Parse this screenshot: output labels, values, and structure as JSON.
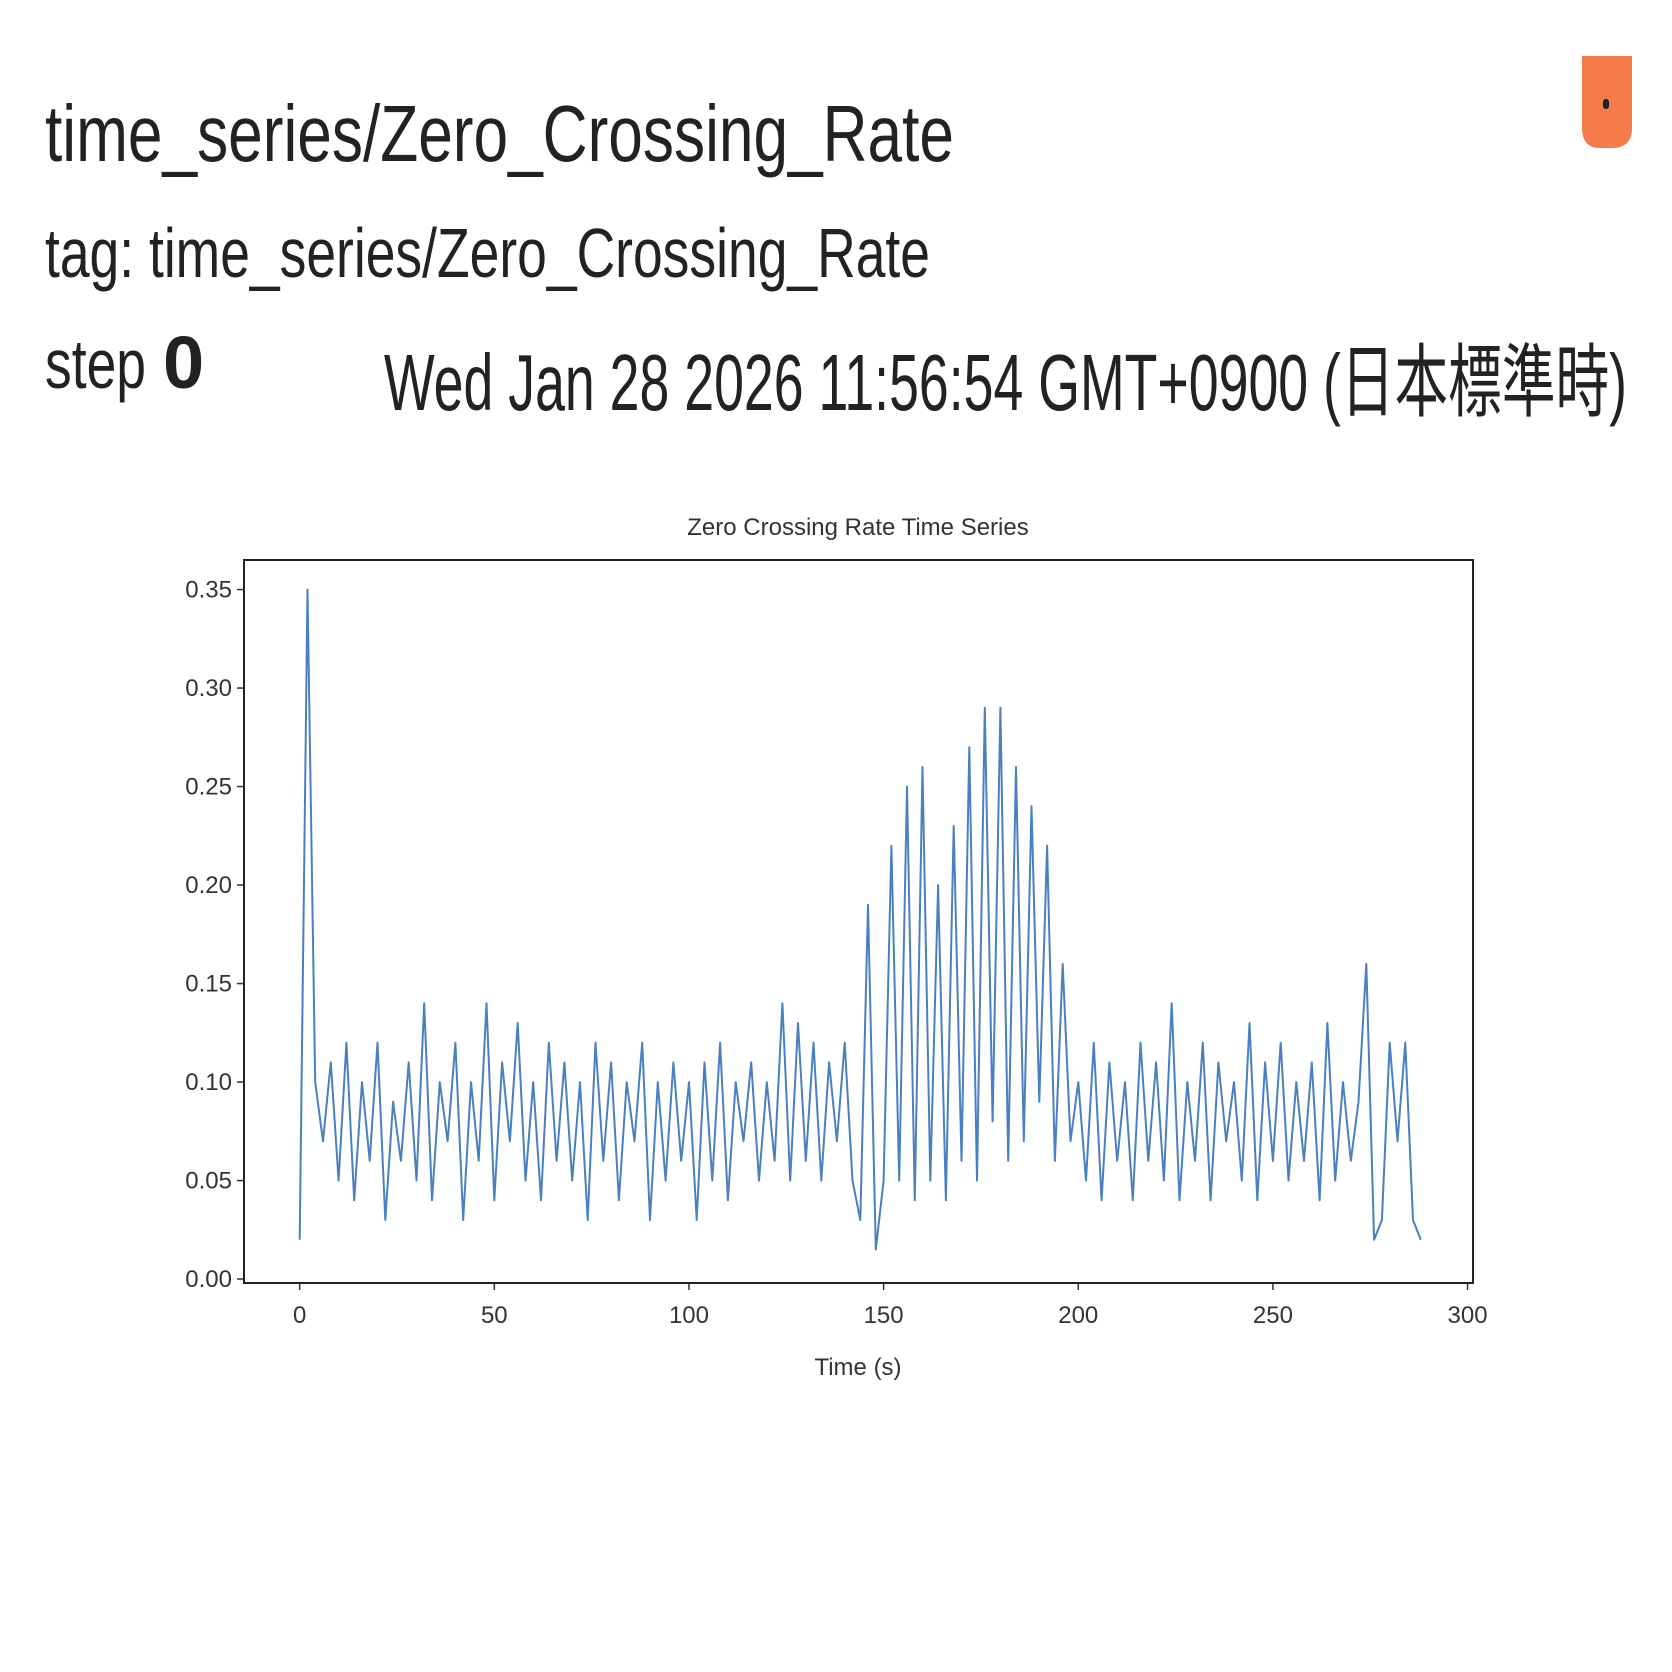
{
  "header": {
    "title": "time_series/Zero_Crossing_Rate",
    "tag": "tag: time_series/Zero_Crossing_Rate",
    "step_label": "step",
    "step": 0,
    "date": "Wed Jan 28 2026 11:56:54 GMT+0900 (日本標準時)"
  },
  "chart_data": {
    "type": "line",
    "title": "Zero Crossing Rate Time Series",
    "xlabel": "Time (s)",
    "color": "#4a80c0",
    "x": [
      0,
      2,
      4,
      6,
      8,
      10,
      12,
      14,
      16,
      18,
      20,
      22,
      24,
      26,
      28,
      30,
      32,
      34,
      36,
      38,
      40,
      42,
      44,
      46,
      48,
      50,
      52,
      54,
      56,
      58,
      60,
      62,
      64,
      66,
      68,
      70,
      72,
      74,
      76,
      78,
      80,
      82,
      84,
      86,
      88,
      90,
      92,
      94,
      96,
      98,
      100,
      102,
      104,
      106,
      108,
      110,
      112,
      114,
      116,
      118,
      120,
      122,
      124,
      126,
      128,
      130,
      132,
      134,
      136,
      138,
      140,
      142,
      144,
      146,
      148,
      150,
      152,
      154,
      156,
      158,
      160,
      162,
      164,
      166,
      168,
      170,
      172,
      174,
      176,
      178,
      180,
      182,
      184,
      186,
      188,
      190,
      192,
      194,
      196,
      198,
      200,
      202,
      204,
      206,
      208,
      210,
      212,
      214,
      216,
      218,
      220,
      222,
      224,
      226,
      228,
      230,
      232,
      234,
      236,
      238,
      240,
      242,
      244,
      246,
      248,
      250,
      252,
      254,
      256,
      258,
      260,
      262,
      264,
      266,
      268,
      270,
      272,
      274,
      276,
      278,
      280,
      282,
      284,
      286,
      288
    ],
    "values": [
      0.02,
      0.35,
      0.1,
      0.07,
      0.11,
      0.05,
      0.12,
      0.04,
      0.1,
      0.06,
      0.12,
      0.03,
      0.09,
      0.06,
      0.11,
      0.05,
      0.14,
      0.04,
      0.1,
      0.07,
      0.12,
      0.03,
      0.1,
      0.06,
      0.14,
      0.04,
      0.11,
      0.07,
      0.13,
      0.05,
      0.1,
      0.04,
      0.12,
      0.06,
      0.11,
      0.05,
      0.1,
      0.03,
      0.12,
      0.06,
      0.11,
      0.04,
      0.1,
      0.07,
      0.12,
      0.03,
      0.1,
      0.05,
      0.11,
      0.06,
      0.1,
      0.03,
      0.11,
      0.05,
      0.12,
      0.04,
      0.1,
      0.07,
      0.11,
      0.05,
      0.1,
      0.06,
      0.14,
      0.05,
      0.13,
      0.06,
      0.12,
      0.05,
      0.11,
      0.07,
      0.12,
      0.05,
      0.03,
      0.19,
      0.015,
      0.05,
      0.22,
      0.05,
      0.25,
      0.04,
      0.26,
      0.05,
      0.2,
      0.04,
      0.23,
      0.06,
      0.27,
      0.05,
      0.29,
      0.08,
      0.29,
      0.06,
      0.26,
      0.07,
      0.24,
      0.09,
      0.22,
      0.06,
      0.16,
      0.07,
      0.1,
      0.05,
      0.12,
      0.04,
      0.11,
      0.06,
      0.1,
      0.04,
      0.12,
      0.06,
      0.11,
      0.05,
      0.14,
      0.04,
      0.1,
      0.06,
      0.12,
      0.04,
      0.11,
      0.07,
      0.1,
      0.05,
      0.13,
      0.04,
      0.11,
      0.06,
      0.12,
      0.05,
      0.1,
      0.06,
      0.11,
      0.04,
      0.13,
      0.05,
      0.1,
      0.06,
      0.09,
      0.16,
      0.02,
      0.03,
      0.12,
      0.07,
      0.12,
      0.03,
      0.02
    ],
    "xlim": [
      -14.3,
      301.4
    ],
    "ylim": [
      -0.002,
      0.365
    ],
    "xticks": [
      0,
      50,
      100,
      150,
      200,
      250,
      300
    ],
    "yticks": [
      {
        "value": 0,
        "label": "0.00"
      },
      {
        "value": 0.05,
        "label": "0.05"
      },
      {
        "value": 0.1,
        "label": "0.10"
      },
      {
        "value": 0.15,
        "label": "0.15"
      },
      {
        "value": 0.2,
        "label": "0.20"
      },
      {
        "value": 0.25,
        "label": "0.25"
      },
      {
        "value": 0.3,
        "label": "0.30"
      },
      {
        "value": 0.35,
        "label": "0.35"
      }
    ]
  }
}
